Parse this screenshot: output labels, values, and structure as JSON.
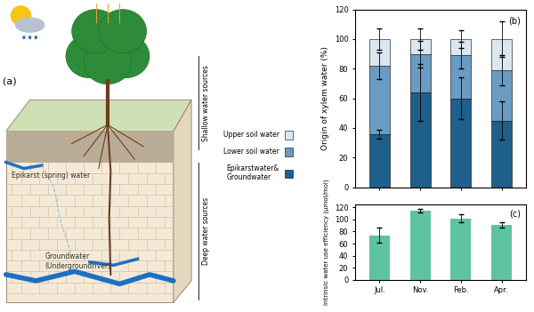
{
  "diagram": {
    "label": "(a)",
    "shallow_sources": "Shallow water sources",
    "deep_sources": "Deep water sources",
    "epikarst_water": "Epikarst (spring) water",
    "groundwater": "Groundwater\n(Undergroundriver)"
  },
  "chart_data": [
    {
      "type": "bar",
      "title": "(b)",
      "stacked": true,
      "y_label": "Origin of xylem water (%)",
      "ylim": [
        0,
        120
      ],
      "yticks": [
        0,
        20,
        40,
        60,
        80,
        100,
        120
      ],
      "tick_labels": "y",
      "legend": "center right",
      "series": [
        {
          "name": "Epikarstwater&\nGroundwater",
          "color": "#1f5f8b",
          "values": [
            36,
            64,
            60,
            45
          ],
          "errors": [
            3,
            19,
            14,
            13
          ]
        },
        {
          "name": "Lower soil water",
          "color": "#6a9bc3",
          "values": [
            46,
            26,
            29,
            34
          ],
          "errors": [
            9,
            9,
            9,
            10
          ]
        },
        {
          "name": "Upper soil water",
          "color": "#dbe6f0",
          "values": [
            18,
            10,
            11,
            21
          ],
          "errors": [
            7,
            7,
            6,
            12
          ]
        }
      ]
    },
    {
      "type": "bar",
      "title": "(c)",
      "categories": [
        "Jul.",
        "Nov.",
        "Feb.",
        "Apr."
      ],
      "y_label": "Intrinsic water use efficiency (μmol/mol)",
      "values": [
        74,
        114,
        102,
        91
      ],
      "errors": [
        12,
        3,
        7,
        4
      ],
      "color": "#5ec4a0",
      "ylim": [
        0,
        125
      ],
      "yticks": [
        0,
        20,
        40,
        60,
        80,
        100,
        120
      ]
    }
  ]
}
